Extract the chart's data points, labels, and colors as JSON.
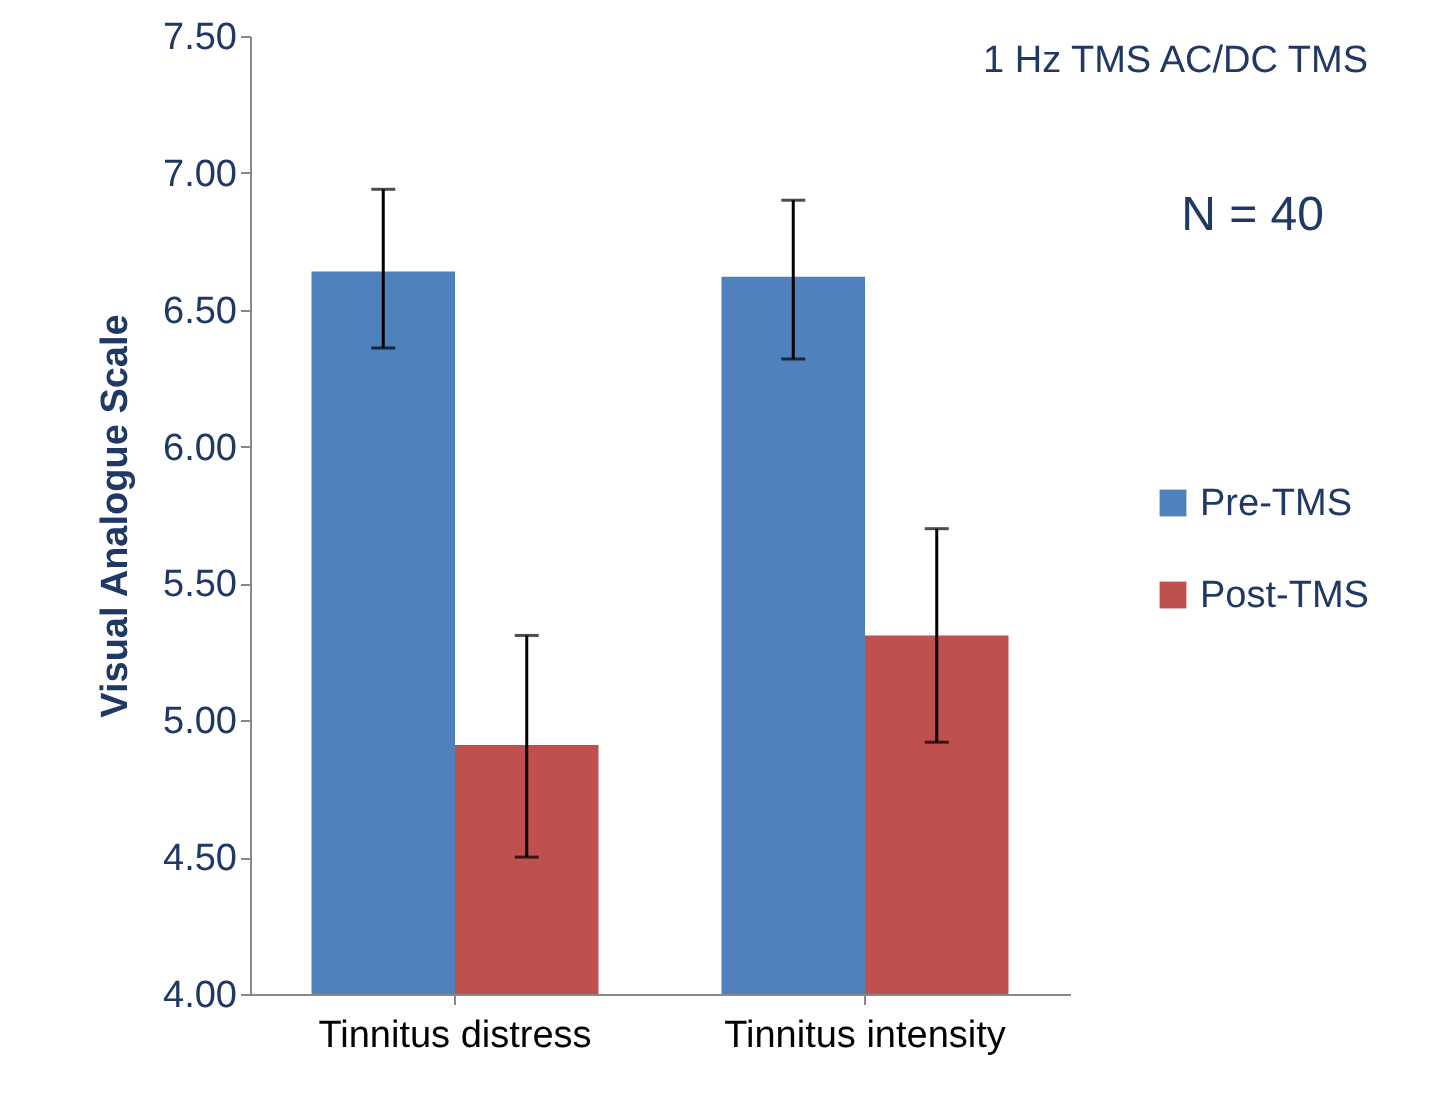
{
  "chart_data": {
    "type": "bar",
    "ylabel": "Visual Analogue Scale",
    "categories": [
      "Tinnitus distress",
      "Tinnitus intensity"
    ],
    "series": [
      {
        "name": "Pre-TMS",
        "color": "#4f81bd",
        "values": [
          6.64,
          6.62
        ],
        "errors": [
          [
            6.36,
            6.94
          ],
          [
            6.32,
            6.9
          ]
        ]
      },
      {
        "name": "Post-TMS",
        "color": "#c0504d",
        "values": [
          4.91,
          5.31
        ],
        "errors": [
          [
            4.5,
            5.31
          ],
          [
            4.92,
            5.7
          ]
        ]
      }
    ],
    "ylim": [
      4,
      7.5
    ],
    "yticks": [
      {
        "value": 4,
        "label": "4.00"
      },
      {
        "value": 4.5,
        "label": "4.50"
      },
      {
        "value": 5,
        "label": "5.00"
      },
      {
        "value": 5.5,
        "label": "5.50"
      },
      {
        "value": 6,
        "label": "6.00"
      },
      {
        "value": 6.5,
        "label": "6.50"
      },
      {
        "value": 7,
        "label": "7.00"
      },
      {
        "value": 7.5,
        "label": "7.50"
      }
    ],
    "legend": "right",
    "grid": false,
    "annotations": [
      "1 Hz TMS AC/DC TMS",
      "N = 40"
    ]
  }
}
